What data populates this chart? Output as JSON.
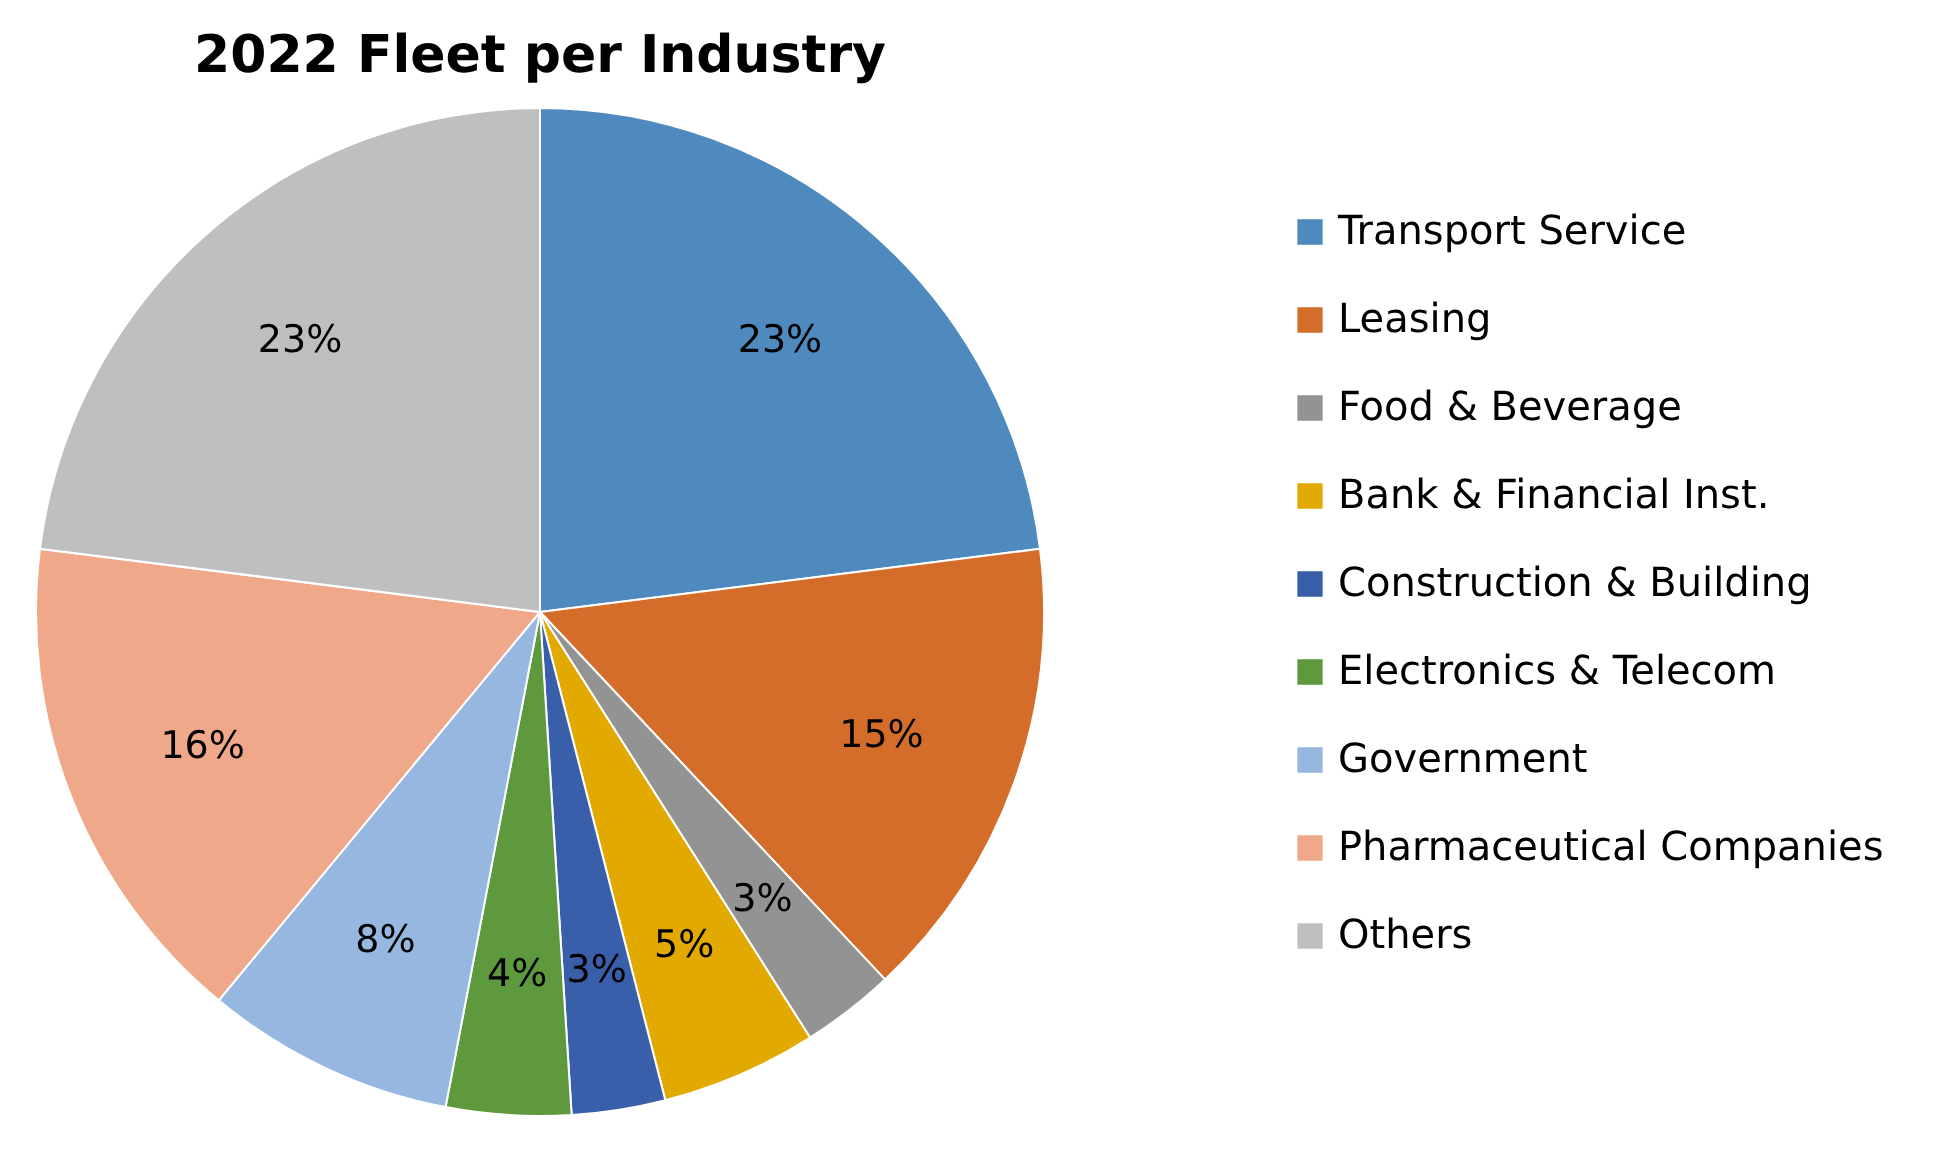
{
  "chart_data": {
    "type": "pie",
    "title": "2022 Fleet per Industry",
    "categories": [
      "Transport Service",
      "Leasing",
      "Food & Beverage",
      "Bank & Financial Inst.",
      "Construction & Building",
      "Electronics & Telecom",
      "Government",
      "Pharmaceutical Companies",
      "Others"
    ],
    "values": [
      23,
      15,
      3,
      5,
      3,
      4,
      8,
      16,
      23
    ],
    "colors": [
      "#4f8abe",
      "#d46d2a",
      "#939393",
      "#e2a900",
      "#3a5faa",
      "#5e9a3d",
      "#96b7df",
      "#f0a88a",
      "#bfbfbf"
    ],
    "value_labels": [
      "23%",
      "15%",
      "3%",
      "5%",
      "3%",
      "4%",
      "8%",
      "16%",
      "23%"
    ],
    "legend": "right"
  }
}
